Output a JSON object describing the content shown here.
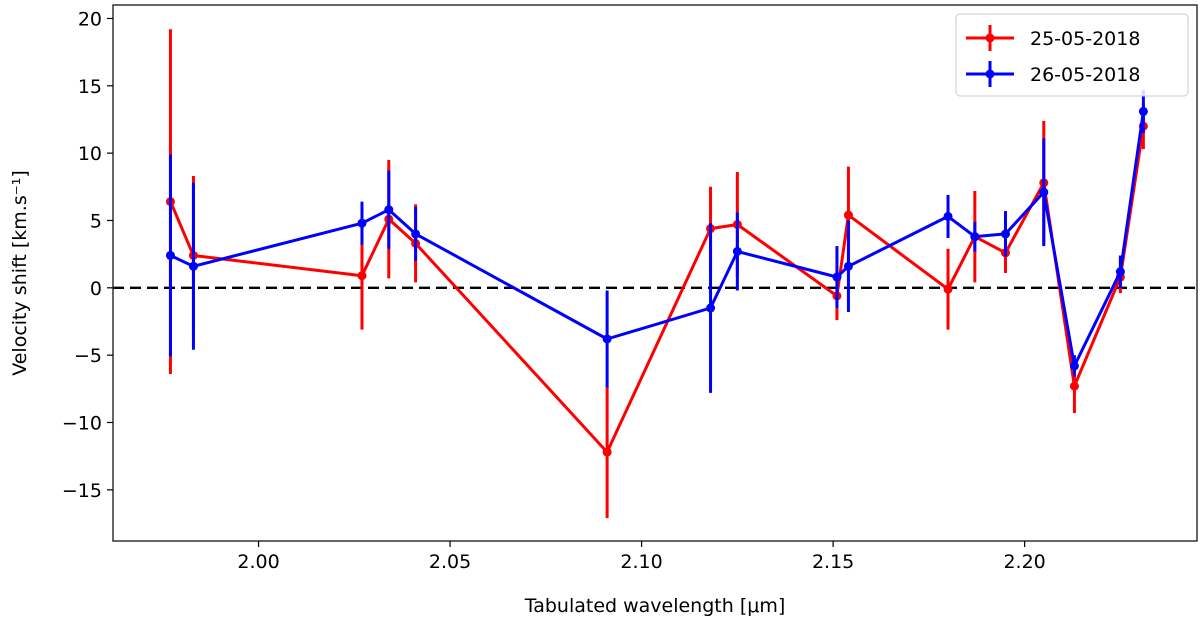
{
  "chart_data": {
    "type": "line",
    "xlabel": "Tabulated wavelength [μm]",
    "ylabel": "Velocity shift [km.s⁻¹]",
    "xlim": [
      1.962,
      2.245
    ],
    "ylim": [
      -18.8,
      21.0
    ],
    "xticks": [
      2.0,
      2.05,
      2.1,
      2.15,
      2.2
    ],
    "xtick_labels": [
      "2.00",
      "2.05",
      "2.10",
      "2.15",
      "2.20"
    ],
    "yticks": [
      -15,
      -10,
      -5,
      0,
      5,
      10,
      15,
      20
    ],
    "ytick_labels": [
      "−15",
      "−10",
      "−5",
      "0",
      "5",
      "10",
      "15",
      "20"
    ],
    "reference_line": {
      "y": 0,
      "style": "dashed",
      "color": "#000000"
    },
    "legend_position": "top-right",
    "series": [
      {
        "name": "25-05-2018",
        "color": "#ff0000",
        "points": [
          {
            "x": 1.977,
            "y": 6.4,
            "err": 12.8
          },
          {
            "x": 1.983,
            "y": 2.4,
            "err": 5.9
          },
          {
            "x": 2.027,
            "y": 0.9,
            "err": 4.0
          },
          {
            "x": 2.034,
            "y": 5.1,
            "err": 4.4
          },
          {
            "x": 2.041,
            "y": 3.3,
            "err": 2.9
          },
          {
            "x": 2.091,
            "y": -12.2,
            "err": 4.9
          },
          {
            "x": 2.118,
            "y": 4.4,
            "err": 3.1
          },
          {
            "x": 2.125,
            "y": 4.7,
            "err": 3.9
          },
          {
            "x": 2.151,
            "y": -0.6,
            "err": 1.8
          },
          {
            "x": 2.154,
            "y": 5.4,
            "err": 3.6
          },
          {
            "x": 2.18,
            "y": -0.1,
            "err": 3.0
          },
          {
            "x": 2.187,
            "y": 3.8,
            "err": 3.4
          },
          {
            "x": 2.195,
            "y": 2.6,
            "err": 1.5
          },
          {
            "x": 2.205,
            "y": 7.8,
            "err": 4.6
          },
          {
            "x": 2.213,
            "y": -7.3,
            "err": 2.0
          },
          {
            "x": 2.225,
            "y": 0.8,
            "err": 1.2
          },
          {
            "x": 2.231,
            "y": 12.0,
            "err": 1.7
          }
        ]
      },
      {
        "name": "26-05-2018",
        "color": "#0000ff",
        "points": [
          {
            "x": 1.977,
            "y": 2.4,
            "err": 7.5
          },
          {
            "x": 1.983,
            "y": 1.6,
            "err": 6.2
          },
          {
            "x": 2.027,
            "y": 4.8,
            "err": 1.6
          },
          {
            "x": 2.034,
            "y": 5.8,
            "err": 2.9
          },
          {
            "x": 2.041,
            "y": 4.0,
            "err": 2.0
          },
          {
            "x": 2.091,
            "y": -3.8,
            "err": 3.6
          },
          {
            "x": 2.118,
            "y": -1.5,
            "err": 6.3
          },
          {
            "x": 2.125,
            "y": 2.7,
            "err": 2.9
          },
          {
            "x": 2.151,
            "y": 0.8,
            "err": 2.3
          },
          {
            "x": 2.154,
            "y": 1.6,
            "err": 3.4
          },
          {
            "x": 2.18,
            "y": 5.3,
            "err": 1.6
          },
          {
            "x": 2.187,
            "y": 3.8,
            "err": 1.1
          },
          {
            "x": 2.195,
            "y": 4.0,
            "err": 1.7
          },
          {
            "x": 2.205,
            "y": 7.1,
            "err": 4.0
          },
          {
            "x": 2.213,
            "y": -5.8,
            "err": 0.8
          },
          {
            "x": 2.225,
            "y": 1.2,
            "err": 1.2
          },
          {
            "x": 2.231,
            "y": 13.1,
            "err": 1.6
          }
        ]
      }
    ]
  }
}
